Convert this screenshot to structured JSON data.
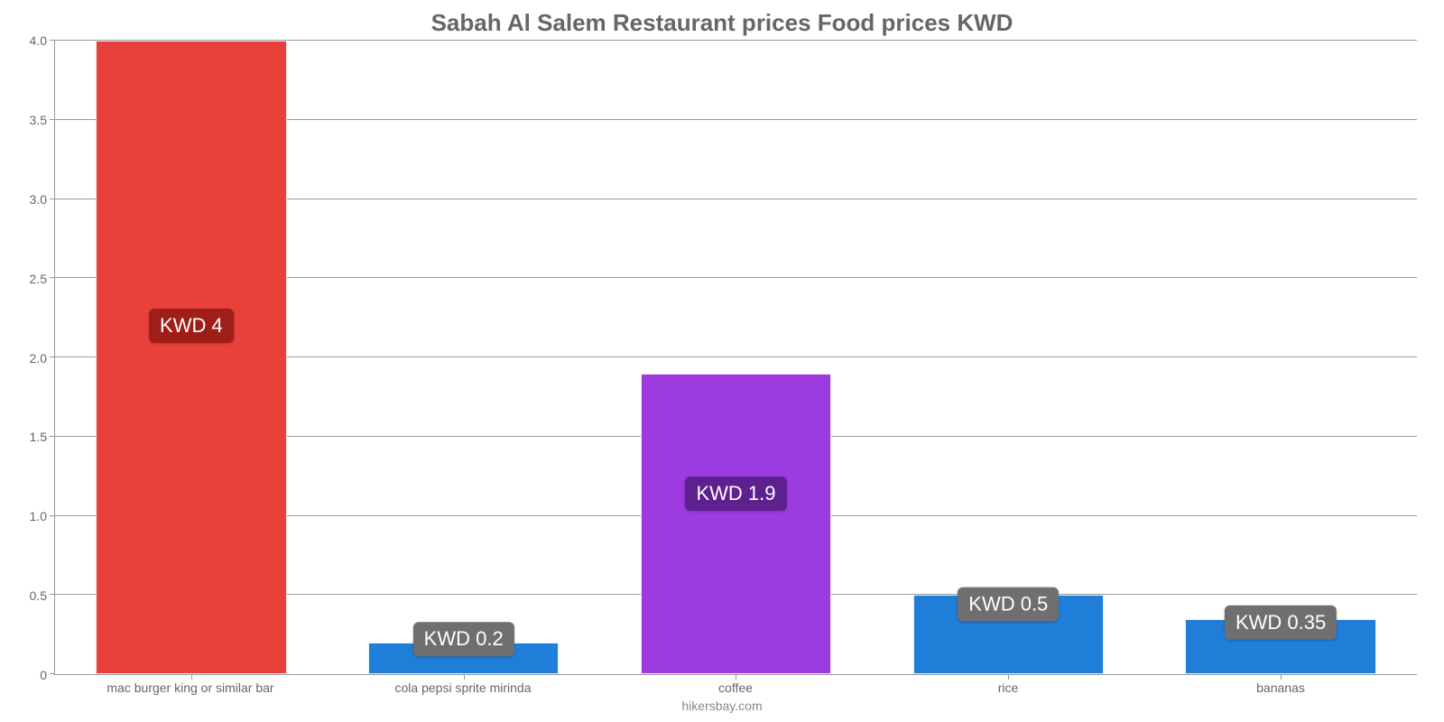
{
  "chart": {
    "type": "bar",
    "title": "Sabah Al Salem Restaurant prices Food prices KWD",
    "title_color": "#666666",
    "title_fontsize": 26,
    "footer": "hikersbay.com",
    "footer_color": "#888888",
    "background_color": "#ffffff",
    "grid_color": "#999999",
    "axis_label_color": "#666666",
    "axis_label_fontsize": 14,
    "value_label_fontsize": 22,
    "ylim": [
      0,
      4.0
    ],
    "yticks": [
      0,
      0.5,
      1.0,
      1.5,
      2.0,
      2.5,
      3.0,
      3.5,
      4.0
    ],
    "ytick_labels": [
      "0",
      "0.5",
      "1.0",
      "1.5",
      "2.0",
      "2.5",
      "3.0",
      "3.5",
      "4.0"
    ],
    "bar_width_pct": 70,
    "categories": [
      "mac burger king or similar bar",
      "cola pepsi sprite mirinda",
      "coffee",
      "rice",
      "bananas"
    ],
    "values": [
      4,
      0.2,
      1.9,
      0.5,
      0.35
    ],
    "value_labels": [
      "KWD 4",
      "KWD 0.2",
      "KWD 1.9",
      "KWD 0.5",
      "KWD 0.35"
    ],
    "bar_colors": [
      "#e8403a",
      "#1f7ed8",
      "#9b3be0",
      "#1f7ed8",
      "#1f7ed8"
    ],
    "label_bg_colors": [
      "#9f1f18",
      "#6f6f6f",
      "#5e1f8f",
      "#6f6f6f",
      "#6f6f6f"
    ],
    "label_position_pct_from_top": [
      45,
      -60,
      40,
      -22,
      -40
    ]
  }
}
